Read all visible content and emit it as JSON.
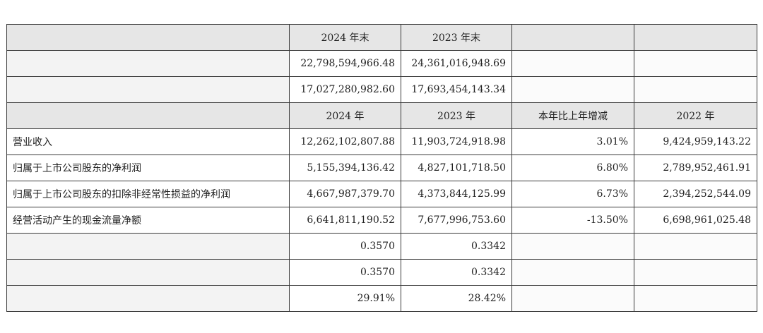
{
  "header_rows": [
    {
      "cols": [
        "2024 年末",
        "2023 年末",
        "",
        ""
      ]
    },
    {
      "cols": [
        "2024 年",
        "2023 年",
        "本年比上年增减",
        "2022 年"
      ]
    }
  ],
  "balance_rows": [
    {
      "label": "",
      "v2024": "22,798,594,966.48",
      "v2023": "24,361,016,948.69",
      "change": "",
      "v2022": ""
    },
    {
      "label": "",
      "v2024": "17,027,280,982.60",
      "v2023": "17,693,454,143.34",
      "change": "",
      "v2022": ""
    }
  ],
  "income_rows": [
    {
      "label": "营业收入",
      "v2024": "12,262,102,807.88",
      "v2023": "11,903,724,918.98",
      "change": "3.01%",
      "v2022": "9,424,959,143.22"
    },
    {
      "label": "归属于上市公司股东的净利润",
      "v2024": "5,155,394,136.42",
      "v2023": "4,827,101,718.50",
      "change": "6.80%",
      "v2022": "2,789,952,461.91"
    },
    {
      "label": "归属于上市公司股东的扣除非经常性损益的净利润",
      "v2024": "4,667,987,379.70",
      "v2023": "4,373,844,125.99",
      "change": "6.73%",
      "v2022": "2,394,252,544.09"
    },
    {
      "label": "经营活动产生的现金流量净额",
      "v2024": "6,641,811,190.52",
      "v2023": "7,677,996,753.60",
      "change": "-13.50%",
      "v2022": "6,698,961,025.48"
    },
    {
      "label": "",
      "v2024": "0.3570",
      "v2023": "0.3342",
      "change": "",
      "v2022": ""
    },
    {
      "label": "",
      "v2024": "0.3570",
      "v2023": "0.3342",
      "change": "",
      "v2022": ""
    },
    {
      "label": "",
      "v2024": "29.91%",
      "v2023": "28.42%",
      "change": "",
      "v2022": ""
    }
  ]
}
